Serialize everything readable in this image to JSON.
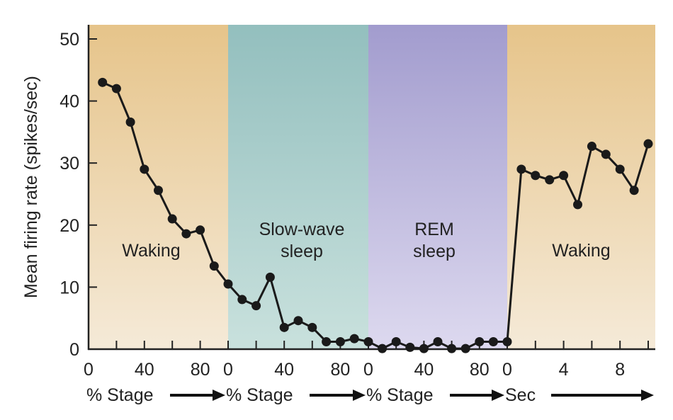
{
  "chart_data": {
    "type": "line",
    "ylabel": "Mean firing rate (spikes/sec)",
    "ylim": [
      0,
      52
    ],
    "yticks": [
      0,
      10,
      20,
      30,
      40,
      50
    ],
    "grid": false,
    "panels": [
      {
        "label": "Waking",
        "xunit": "% Stage",
        "color_top": "#e6c48a",
        "color_bottom": "#f5ead8",
        "xmax": 100,
        "tick_labels": [
          "0",
          "40",
          "80"
        ],
        "tick_values": [
          0,
          40,
          80
        ],
        "x": [
          10,
          20,
          30,
          40,
          50,
          60,
          70,
          80,
          90,
          100
        ],
        "y": [
          43,
          42,
          36.6,
          29,
          25.6,
          21,
          18.6,
          19.2,
          13.4,
          10.5
        ]
      },
      {
        "label": "Slow-wave sleep",
        "xunit": "% Stage",
        "color_top": "#93bfbe",
        "color_bottom": "#c9e1dd",
        "xmax": 100,
        "tick_labels": [
          "0",
          "40",
          "80"
        ],
        "tick_values": [
          0,
          40,
          80
        ],
        "x": [
          10,
          20,
          30,
          40,
          50,
          60,
          70,
          80,
          90,
          100
        ],
        "y": [
          8,
          7,
          11.6,
          3.5,
          4.6,
          3.5,
          1.2,
          1.2,
          1.7,
          1.2
        ]
      },
      {
        "label": "REM sleep",
        "xunit": "% Stage",
        "color_top": "#a29cce",
        "color_bottom": "#ddd9ef",
        "xmax": 100,
        "tick_labels": [
          "0",
          "40",
          "80"
        ],
        "tick_values": [
          0,
          40,
          80
        ],
        "x": [
          10,
          20,
          30,
          40,
          50,
          60,
          70,
          80,
          90,
          100
        ],
        "y": [
          0.1,
          1.2,
          0.3,
          0.1,
          1.2,
          0.1,
          0.1,
          1.2,
          1.2,
          1.2
        ]
      },
      {
        "label": "Waking",
        "xunit": "Sec",
        "color_top": "#e6c48a",
        "color_bottom": "#f5ead8",
        "xmax": 10.5,
        "tick_labels": [
          "0",
          "4",
          "8"
        ],
        "tick_values": [
          0,
          4,
          8
        ],
        "x": [
          1,
          2,
          3,
          4,
          5,
          6,
          7,
          8,
          9,
          10
        ],
        "y": [
          29,
          28,
          27.3,
          28,
          23.3,
          32.7,
          31.4,
          29,
          25.6,
          33.1
        ]
      }
    ]
  }
}
